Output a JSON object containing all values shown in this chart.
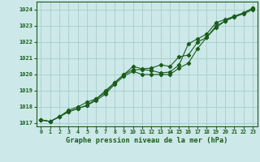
{
  "title": "Graphe pression niveau de la mer (hPa)",
  "bg_color": "#cce8e8",
  "grid_color": "#aacccc",
  "line_color": "#1a5c1a",
  "xlim": [
    -0.5,
    23.5
  ],
  "ylim": [
    1016.8,
    1024.5
  ],
  "yticks": [
    1017,
    1018,
    1019,
    1020,
    1021,
    1022,
    1023,
    1024
  ],
  "xticks": [
    0,
    1,
    2,
    3,
    4,
    5,
    6,
    7,
    8,
    9,
    10,
    11,
    12,
    13,
    14,
    15,
    16,
    17,
    18,
    19,
    20,
    21,
    22,
    23
  ],
  "series1_x": [
    0,
    1,
    2,
    3,
    4,
    5,
    6,
    7,
    8,
    9,
    10,
    11,
    12,
    13,
    14,
    15,
    16,
    17,
    18,
    19,
    20,
    21,
    22,
    23
  ],
  "series1_y": [
    1017.2,
    1017.1,
    1017.4,
    1017.7,
    1017.9,
    1018.1,
    1018.4,
    1018.8,
    1019.4,
    1019.9,
    1020.2,
    1020.0,
    1020.0,
    1020.0,
    1020.0,
    1020.4,
    1020.7,
    1021.6,
    1022.3,
    1022.9,
    1023.3,
    1023.6,
    1023.8,
    1024.1
  ],
  "series2_x": [
    0,
    1,
    2,
    3,
    4,
    5,
    6,
    7,
    8,
    9,
    10,
    11,
    12,
    13,
    14,
    15,
    16,
    17,
    18,
    19,
    20,
    21,
    22,
    23
  ],
  "series2_y": [
    1017.2,
    1017.1,
    1017.4,
    1017.7,
    1017.9,
    1018.1,
    1018.5,
    1019.0,
    1019.5,
    1020.0,
    1020.5,
    1020.35,
    1020.4,
    1020.6,
    1020.5,
    1021.1,
    1021.2,
    1022.0,
    1022.3,
    1023.0,
    1023.3,
    1023.55,
    1023.75,
    1024.0
  ],
  "series3_x": [
    0,
    1,
    2,
    3,
    4,
    5,
    6,
    7,
    8,
    9,
    10,
    11,
    12,
    13,
    14,
    15,
    16,
    17,
    18,
    19,
    20,
    21,
    22,
    23
  ],
  "series3_y": [
    1017.2,
    1017.1,
    1017.4,
    1017.8,
    1018.0,
    1018.3,
    1018.5,
    1018.9,
    1019.5,
    1020.0,
    1020.3,
    1020.3,
    1020.25,
    1020.1,
    1020.15,
    1020.6,
    1021.9,
    1022.2,
    1022.5,
    1023.2,
    1023.4,
    1023.6,
    1023.8,
    1024.1
  ]
}
